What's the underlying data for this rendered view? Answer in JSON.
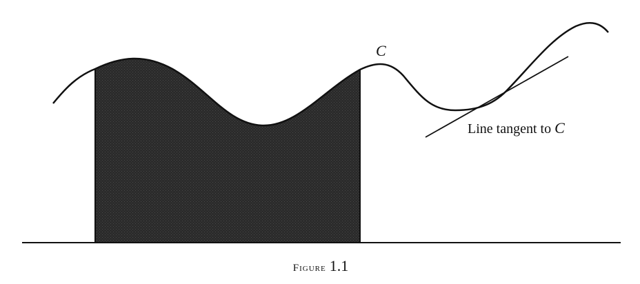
{
  "figure": {
    "curve_label": "C",
    "tangent_label_prefix": "Line tangent to ",
    "tangent_label_var": "C",
    "caption_prefix": "Figure",
    "caption_number": "1.1"
  },
  "colors": {
    "ink": "#111111",
    "shaded_region": "#2b2b2b",
    "background": "#ffffff"
  }
}
